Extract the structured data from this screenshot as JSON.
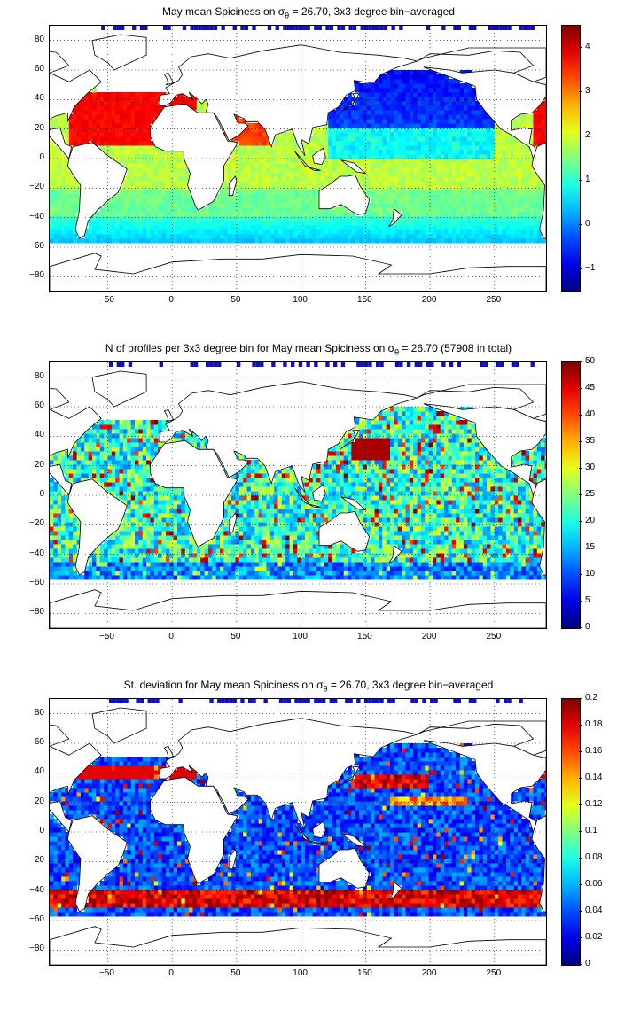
{
  "figure": {
    "panels": [
      {
        "title_prefix": "May mean Spiciness on ",
        "title_sigma": "σ",
        "title_sub": "θ",
        "title_suffix": " = 26.70, 3x3 degree bin−averaged",
        "colorbar": {
          "min": -1.5,
          "max": 4.5,
          "ticks": [
            "4",
            "3",
            "2",
            "1",
            "0",
            "−1"
          ],
          "tick_values": [
            4,
            3,
            2,
            1,
            0,
            -1
          ]
        },
        "field": "spiciness"
      },
      {
        "title_prefix": "N of profiles per 3x3 degree bin for May mean Spiciness on ",
        "title_sigma": "σ",
        "title_sub": "θ",
        "title_suffix": " = 26.70 (57908 in total)",
        "colorbar": {
          "min": 0,
          "max": 50,
          "ticks": [
            "50",
            "45",
            "40",
            "35",
            "30",
            "25",
            "20",
            "15",
            "10",
            "5",
            "0"
          ],
          "tick_values": [
            50,
            45,
            40,
            35,
            30,
            25,
            20,
            15,
            10,
            5,
            0
          ]
        },
        "field": "count"
      },
      {
        "title_prefix": "St. deviation for May mean Spiciness on ",
        "title_sigma": "σ",
        "title_sub": "θ",
        "title_suffix": " = 26.70, 3x3 degree bin−averaged",
        "colorbar": {
          "min": 0,
          "max": 0.2,
          "ticks": [
            "0.2",
            "0.18",
            "0.16",
            "0.14",
            "0.12",
            "0.1",
            "0.08",
            "0.06",
            "0.04",
            "0.02",
            "0"
          ],
          "tick_values": [
            0.2,
            0.18,
            0.16,
            0.14,
            0.12,
            0.1,
            0.08,
            0.06,
            0.04,
            0.02,
            0
          ]
        },
        "field": "stdev"
      }
    ],
    "x_ticks": [
      "−50",
      "0",
      "50",
      "100",
      "150",
      "200",
      "250"
    ],
    "x_tick_values": [
      -50,
      0,
      50,
      100,
      150,
      200,
      250
    ],
    "y_ticks": [
      "80",
      "60",
      "40",
      "20",
      "0",
      "−20",
      "−40",
      "−60",
      "−80"
    ],
    "y_tick_values": [
      80,
      60,
      40,
      20,
      0,
      -20,
      -40,
      -60,
      -80
    ],
    "x_range": [
      -95,
      290
    ],
    "y_range": [
      -90,
      90
    ]
  }
}
